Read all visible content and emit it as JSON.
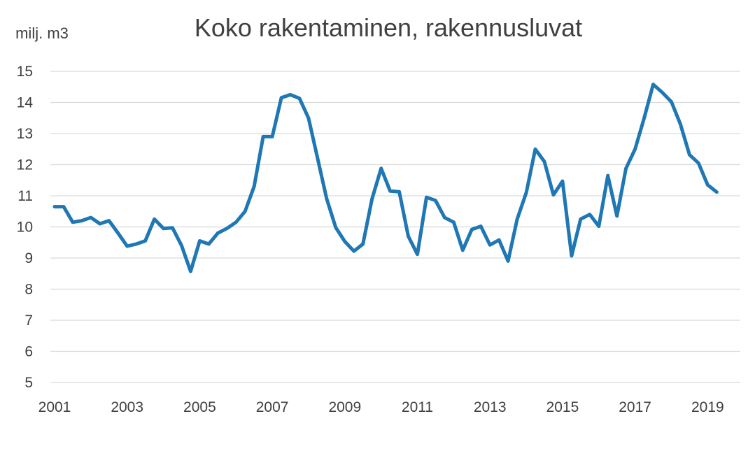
{
  "chart_data": {
    "type": "line",
    "title": "Koko rakentaminen, rakennusluvat",
    "ylabel": "milj. m3",
    "xlabel": "",
    "ylim": [
      5,
      15
    ],
    "y_ticks": [
      "5",
      "6",
      "7",
      "8",
      "9",
      "10",
      "11",
      "12",
      "13",
      "14",
      "15"
    ],
    "x_ticks": [
      "2001",
      "2003",
      "2005",
      "2007",
      "2009",
      "2011",
      "2013",
      "2015",
      "2017",
      "2019"
    ],
    "grid": true,
    "legend": "none",
    "color": "#1f77b4",
    "series": [
      {
        "x": [
          "2001Q1",
          "2001Q2",
          "2001Q3",
          "2001Q4",
          "2002Q1",
          "2002Q2",
          "2002Q3",
          "2002Q4",
          "2003Q1",
          "2003Q2",
          "2003Q3",
          "2003Q4",
          "2004Q1",
          "2004Q2",
          "2004Q3",
          "2004Q4",
          "2005Q1",
          "2005Q2",
          "2005Q3",
          "2005Q4",
          "2006Q1",
          "2006Q2",
          "2006Q3",
          "2006Q4",
          "2007Q1",
          "2007Q2",
          "2007Q3",
          "2007Q4",
          "2008Q1",
          "2008Q2",
          "2008Q3",
          "2008Q4",
          "2009Q1",
          "2009Q2",
          "2009Q3",
          "2009Q4",
          "2010Q1",
          "2010Q2",
          "2010Q3",
          "2010Q4",
          "2011Q1",
          "2011Q2",
          "2011Q3",
          "2011Q4",
          "2012Q1",
          "2012Q2",
          "2012Q3",
          "2012Q4",
          "2013Q1",
          "2013Q2",
          "2013Q3",
          "2013Q4",
          "2014Q1",
          "2014Q2",
          "2014Q3",
          "2014Q4",
          "2015Q1",
          "2015Q2",
          "2015Q3",
          "2015Q4",
          "2016Q1",
          "2016Q2",
          "2016Q3",
          "2016Q4",
          "2017Q1",
          "2017Q2",
          "2017Q3",
          "2017Q4",
          "2018Q1",
          "2018Q2",
          "2018Q3",
          "2018Q4",
          "2019Q1",
          "2019Q2"
        ],
        "values": [
          10.65,
          10.65,
          10.15,
          10.2,
          10.3,
          10.1,
          10.2,
          9.8,
          9.38,
          9.45,
          9.55,
          10.25,
          9.95,
          9.97,
          9.4,
          8.57,
          9.55,
          9.45,
          9.8,
          9.95,
          10.15,
          10.5,
          11.3,
          12.9,
          12.9,
          14.15,
          14.25,
          14.13,
          13.5,
          12.2,
          10.9,
          9.98,
          9.53,
          9.22,
          9.45,
          10.9,
          11.88,
          11.15,
          11.13,
          9.7,
          9.12,
          10.95,
          10.85,
          10.3,
          10.15,
          9.25,
          9.92,
          10.02,
          9.42,
          9.58,
          8.9,
          10.25,
          11.1,
          12.5,
          12.1,
          11.03,
          11.47,
          9.07,
          10.25,
          10.4,
          10.02,
          11.65,
          10.35,
          11.88,
          12.5,
          13.5,
          14.58,
          14.32,
          14.02,
          13.3,
          12.32,
          12.05,
          11.35,
          11.12
        ]
      }
    ]
  }
}
